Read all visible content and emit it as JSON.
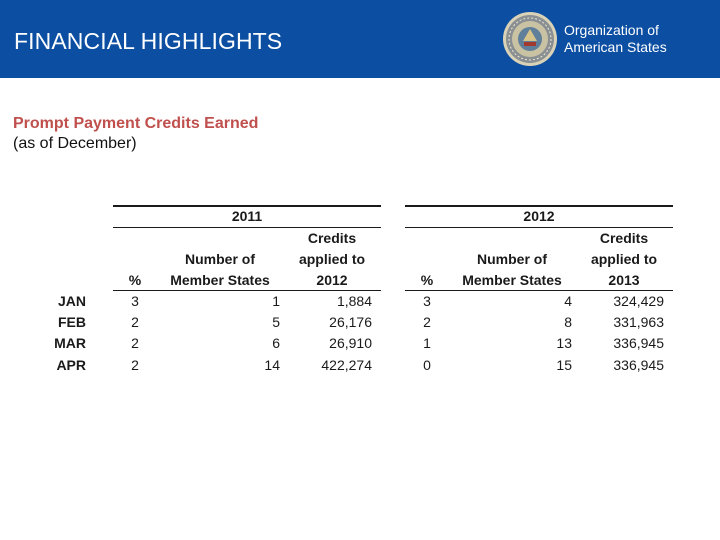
{
  "header": {
    "title": "FINANCIAL HIGHLIGHTS",
    "org_line1": "Organization of",
    "org_line2": "American States",
    "bg_color": "#0b4ea2"
  },
  "subtitle": {
    "heading": "Prompt Payment Credits Earned",
    "note": "(as of December)",
    "accent_color": "#c0504d"
  },
  "table": {
    "group_2011": "2011",
    "group_2012": "2012",
    "col_pct": "%",
    "col_num_line1": "Number of",
    "col_num_line2": "Member States",
    "col_cred2011_line1": "Credits",
    "col_cred2011_line2": "applied to",
    "col_cred2011_line3": "2012",
    "col_cred2012_line1": "Credits",
    "col_cred2012_line2": "applied to",
    "col_cred2012_line3": "2013",
    "rows": [
      {
        "month": "JAN",
        "pct2011": "3",
        "num2011": "1",
        "cred2011": "1,884",
        "pct2012": "3",
        "num2012": "4",
        "cred2012": "324,429"
      },
      {
        "month": "FEB",
        "pct2011": "2",
        "num2011": "5",
        "cred2011": "26,176",
        "pct2012": "2",
        "num2012": "8",
        "cred2012": "331,963"
      },
      {
        "month": "MAR",
        "pct2011": "2",
        "num2011": "6",
        "cred2011": "26,910",
        "pct2012": "1",
        "num2012": "13",
        "cred2012": "336,945"
      },
      {
        "month": "APR",
        "pct2011": "2",
        "num2011": "14",
        "cred2011": "422,274",
        "pct2012": "0",
        "num2012": "15",
        "cred2012": "336,945"
      }
    ]
  }
}
